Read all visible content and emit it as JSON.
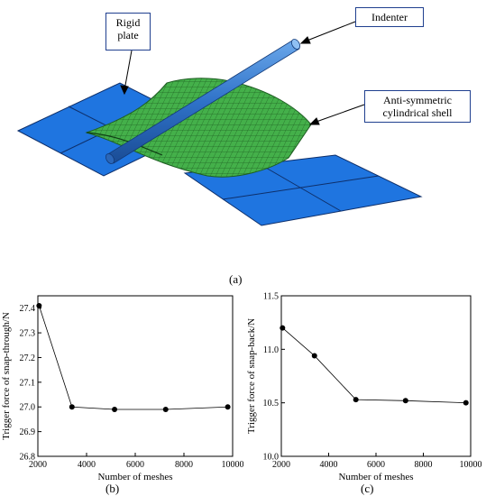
{
  "figure": {
    "panel_labels": [
      "(a)",
      "(b)",
      "(c)"
    ],
    "callouts": {
      "rigid_plate": "Rigid\nplate",
      "indenter": "Indenter",
      "shell": "Anti-symmetric\ncylindrical shell"
    },
    "colors": {
      "plate": "#1f75e0",
      "shell": "#3aa142",
      "indenter": "#2f72c8"
    }
  },
  "chart_data": [
    {
      "type": "line",
      "panel": "(b)",
      "title": "",
      "xlabel": "Number of meshes",
      "ylabel": "Trigger force of snap-through/N",
      "xlim": [
        2000,
        10000
      ],
      "ylim": [
        26.8,
        27.45
      ],
      "xticks": [
        2000,
        4000,
        6000,
        8000,
        10000
      ],
      "yticks": [
        26.8,
        26.9,
        27.0,
        27.1,
        27.2,
        27.3,
        27.4
      ],
      "x": [
        2050,
        3400,
        5150,
        7250,
        9800
      ],
      "y": [
        27.41,
        27.0,
        26.99,
        26.99,
        27.0
      ],
      "grid": false,
      "marker": "circle"
    },
    {
      "type": "line",
      "panel": "(c)",
      "title": "",
      "xlabel": "Number of meshes",
      "ylabel": "Trigger force of snap-back/N",
      "xlim": [
        2000,
        10000
      ],
      "ylim": [
        10.0,
        11.5
      ],
      "xticks": [
        2000,
        4000,
        6000,
        8000,
        10000
      ],
      "yticks": [
        10.0,
        10.5,
        11.0,
        11.5
      ],
      "x": [
        2050,
        3400,
        5150,
        7250,
        9800
      ],
      "y": [
        11.2,
        10.94,
        10.53,
        10.52,
        10.5
      ],
      "grid": false,
      "marker": "circle"
    }
  ]
}
